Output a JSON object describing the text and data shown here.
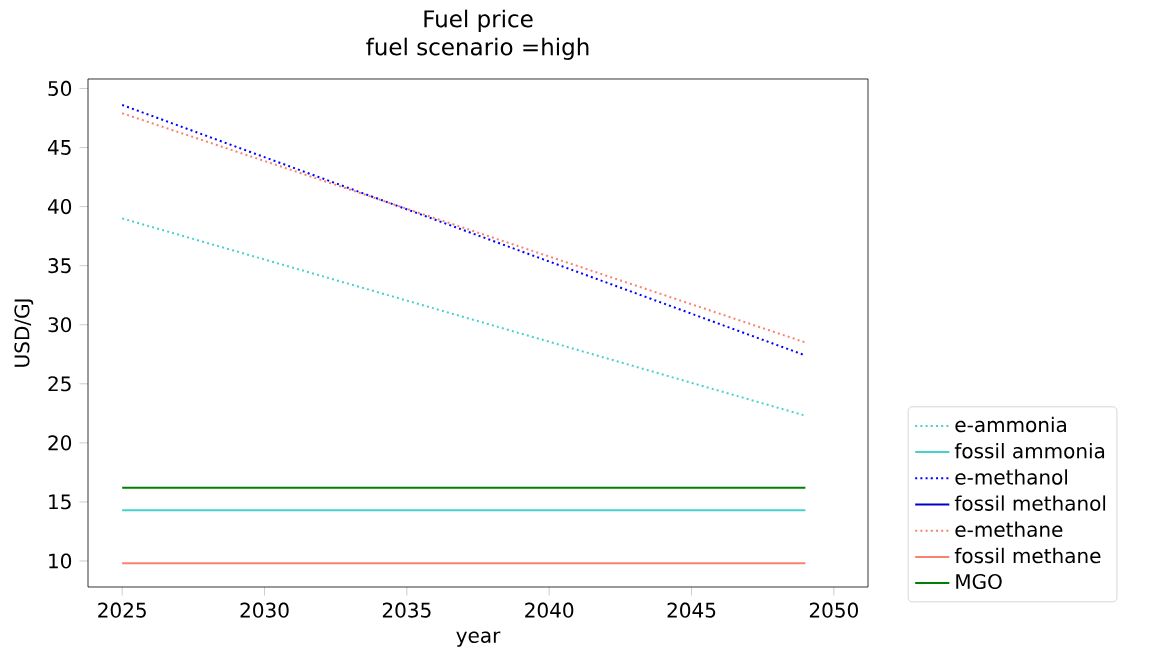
{
  "chart_data": {
    "type": "line",
    "title": "Fuel price",
    "subtitle": "fuel scenario =high",
    "xlabel": "year",
    "ylabel": "USD/GJ",
    "x": [
      2025,
      2049
    ],
    "series": [
      {
        "name": "e-ammonia",
        "color": "#48d1cc",
        "line_style": "dotted",
        "values": [
          39.0,
          22.3
        ]
      },
      {
        "name": "fossil ammonia",
        "color": "#48d1cc",
        "line_style": "solid",
        "values": [
          14.3,
          14.3
        ]
      },
      {
        "name": "e-methanol",
        "color": "#0000ff",
        "line_style": "dotted",
        "values": [
          48.6,
          27.4
        ]
      },
      {
        "name": "fossil methanol",
        "color": "#0000cd",
        "line_style": "solid",
        "values": [
          null,
          null
        ]
      },
      {
        "name": "e-methane",
        "color": "#fa8072",
        "line_style": "dotted",
        "values": [
          47.9,
          28.5
        ]
      },
      {
        "name": "fossil methane",
        "color": "#fa8072",
        "line_style": "solid",
        "values": [
          9.8,
          9.8
        ]
      },
      {
        "name": "MGO",
        "color": "#008000",
        "line_style": "solid",
        "values": [
          16.2,
          16.2
        ]
      }
    ],
    "xlim": [
      2023.8,
      2051.2
    ],
    "ylim": [
      7.8,
      50.8
    ],
    "xticks": [
      2025,
      2030,
      2035,
      2040,
      2045,
      2050
    ],
    "yticks": [
      10,
      15,
      20,
      25,
      30,
      35,
      40,
      45,
      50
    ],
    "grid": false,
    "legend": "right",
    "marker": "none"
  }
}
